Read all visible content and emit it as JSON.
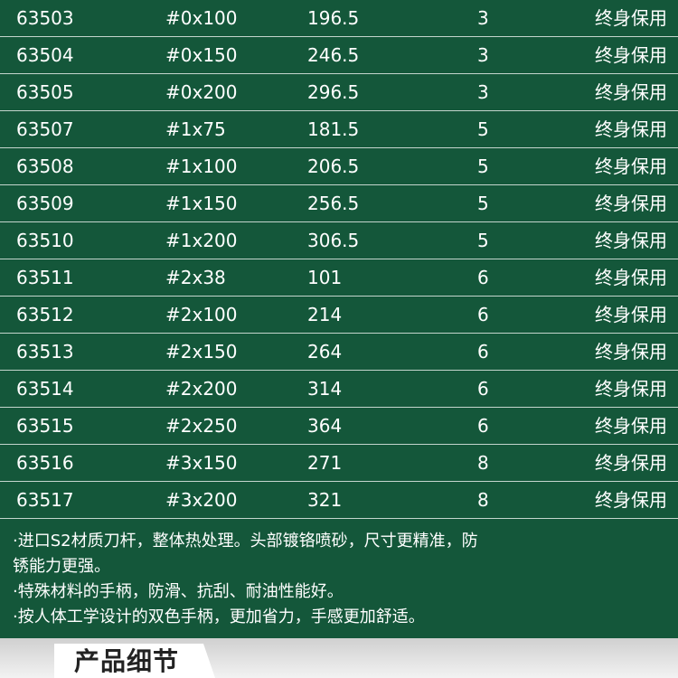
{
  "table": {
    "rows": [
      [
        "63503",
        "#0x100",
        "196.5",
        "3",
        "终身保用"
      ],
      [
        "63504",
        "#0x150",
        "246.5",
        "3",
        "终身保用"
      ],
      [
        "63505",
        "#0x200",
        "296.5",
        "3",
        "终身保用"
      ],
      [
        "63507",
        "#1x75",
        "181.5",
        "5",
        "终身保用"
      ],
      [
        "63508",
        "#1x100",
        "206.5",
        "5",
        "终身保用"
      ],
      [
        "63509",
        "#1x150",
        "256.5",
        "5",
        "终身保用"
      ],
      [
        "63510",
        "#1x200",
        "306.5",
        "5",
        "终身保用"
      ],
      [
        "63511",
        "#2x38",
        "101",
        "6",
        "终身保用"
      ],
      [
        "63512",
        "#2x100",
        "214",
        "6",
        "终身保用"
      ],
      [
        "63513",
        "#2x150",
        "264",
        "6",
        "终身保用"
      ],
      [
        "63514",
        "#2x200",
        "314",
        "6",
        "终身保用"
      ],
      [
        "63515",
        "#2x250",
        "364",
        "6",
        "终身保用"
      ],
      [
        "63516",
        "#3x150",
        "271",
        "8",
        "终身保用"
      ],
      [
        "63517",
        "#3x200",
        "321",
        "8",
        "终身保用"
      ]
    ]
  },
  "notes": [
    "·进口S2材质刀杆，整体热处理。头部镀铬喷砂，尺寸更精准，防锈能力更强。",
    "·特殊材料的手柄，防滑、抗刮、耐油性能好。",
    "·按人体工学设计的双色手柄，更加省力，手感更加舒适。"
  ],
  "footer": {
    "title": "产品细节"
  }
}
